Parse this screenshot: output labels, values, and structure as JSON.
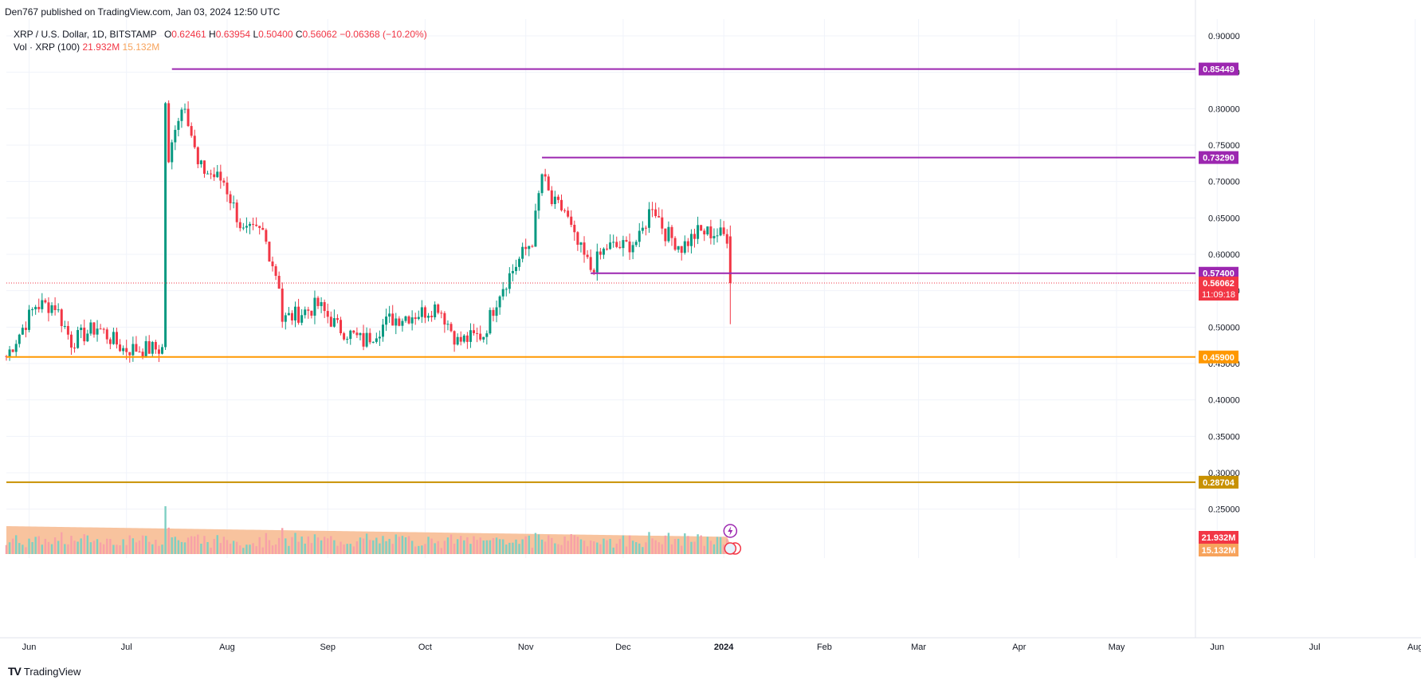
{
  "header": {
    "published": "Den767 published on TradingView.com, Jan 03, 2024 12:50 UTC"
  },
  "legend": {
    "symbol": "XRP / U.S. Dollar, 1D, BITSTAMP",
    "o_label": "O",
    "o_value": "0.62461",
    "h_label": "H",
    "h_value": "0.63954",
    "l_label": "L",
    "l_value": "0.50400",
    "c_label": "C",
    "c_value": "0.56062",
    "change": "−0.06368 (−10.20%)",
    "vol_label": "Vol · XRP (100)",
    "vol_value": "21.932M",
    "vol_ma": "15.132M"
  },
  "brand": {
    "name": "TradingView",
    "logo": "TV"
  },
  "colors": {
    "up": "#089981",
    "down": "#f23645",
    "purple": "#9c27b0",
    "orange": "#ff9800",
    "olive": "#c89100",
    "volArea": "#f7b98d"
  },
  "chart_data": {
    "type": "candlestick",
    "y_ticks": [
      0.9,
      0.85,
      0.8,
      0.75,
      0.7,
      0.65,
      0.6,
      0.55,
      0.5,
      0.45,
      0.4,
      0.35,
      0.3,
      0.25
    ],
    "y_tick_labels": [
      "0.90000",
      "0.85000",
      "0.80000",
      "0.75000",
      "0.70000",
      "0.65000",
      "0.60000",
      "0.55000",
      "0.50000",
      "0.45000",
      "0.40000",
      "0.35000",
      "0.30000",
      "0.25000"
    ],
    "ylim": [
      0.227,
      0.93
    ],
    "x_labels": [
      "Jun",
      "Jul",
      "Aug",
      "Sep",
      "Oct",
      "Nov",
      "Dec",
      "2024",
      "Feb",
      "Mar",
      "Apr",
      "May",
      "Jun",
      "Jul",
      "Aug"
    ],
    "x_label_dates": [
      "2023-06-01",
      "2023-07-01",
      "2023-08-01",
      "2023-09-01",
      "2023-10-01",
      "2023-11-01",
      "2023-12-01",
      "2024-01-01",
      "2024-02-01",
      "2024-03-01",
      "2024-04-01",
      "2024-05-01",
      "2024-06-01",
      "2024-07-01",
      "2024-08-01"
    ],
    "key_points": [
      {
        "date": "2023-05-25",
        "close": 0.46
      },
      {
        "date": "2023-06-03",
        "close": 0.53
      },
      {
        "date": "2023-06-09",
        "close": 0.53
      },
      {
        "date": "2023-06-14",
        "close": 0.48
      },
      {
        "date": "2023-06-22",
        "close": 0.5
      },
      {
        "date": "2023-06-30",
        "close": 0.47
      },
      {
        "date": "2023-07-12",
        "close": 0.47
      },
      {
        "date": "2023-07-13",
        "close": 0.81
      },
      {
        "date": "2023-07-14",
        "close": 0.72
      },
      {
        "date": "2023-07-16",
        "close": 0.78
      },
      {
        "date": "2023-07-19",
        "close": 0.81
      },
      {
        "date": "2023-07-23",
        "close": 0.72
      },
      {
        "date": "2023-07-31",
        "close": 0.7
      },
      {
        "date": "2023-08-06",
        "close": 0.63
      },
      {
        "date": "2023-08-12",
        "close": 0.63
      },
      {
        "date": "2023-08-17",
        "close": 0.56
      },
      {
        "date": "2023-08-18",
        "close": 0.51
      },
      {
        "date": "2023-08-24",
        "close": 0.52
      },
      {
        "date": "2023-08-29",
        "close": 0.53
      },
      {
        "date": "2023-09-04",
        "close": 0.5
      },
      {
        "date": "2023-09-12",
        "close": 0.48
      },
      {
        "date": "2023-09-20",
        "close": 0.51
      },
      {
        "date": "2023-09-30",
        "close": 0.52
      },
      {
        "date": "2023-10-05",
        "close": 0.53
      },
      {
        "date": "2023-10-11",
        "close": 0.48
      },
      {
        "date": "2023-10-19",
        "close": 0.49
      },
      {
        "date": "2023-10-24",
        "close": 0.55
      },
      {
        "date": "2023-10-31",
        "close": 0.6
      },
      {
        "date": "2023-11-03",
        "close": 0.62
      },
      {
        "date": "2023-11-06",
        "close": 0.71
      },
      {
        "date": "2023-11-09",
        "close": 0.67
      },
      {
        "date": "2023-11-13",
        "close": 0.66
      },
      {
        "date": "2023-11-16",
        "close": 0.62
      },
      {
        "date": "2023-11-21",
        "close": 0.58
      },
      {
        "date": "2023-11-26",
        "close": 0.61
      },
      {
        "date": "2023-12-01",
        "close": 0.61
      },
      {
        "date": "2023-12-06",
        "close": 0.62
      },
      {
        "date": "2023-12-10",
        "close": 0.67
      },
      {
        "date": "2023-12-14",
        "close": 0.63
      },
      {
        "date": "2023-12-19",
        "close": 0.61
      },
      {
        "date": "2023-12-24",
        "close": 0.63
      },
      {
        "date": "2023-12-28",
        "close": 0.63
      },
      {
        "date": "2024-01-02",
        "close": 0.625
      },
      {
        "date": "2024-01-03",
        "close": 0.56062
      }
    ],
    "last_candle": {
      "date": "2024-01-03",
      "open": 0.62461,
      "high": 0.63954,
      "low": 0.504,
      "close": 0.56062
    },
    "annotations": [
      0.7329,
      0.574,
      0.574,
      0.574
    ],
    "horizontal_lines": [
      {
        "value": 0.85449,
        "label": "0.85449",
        "color": "#9c27b0",
        "start": "2023-07-15"
      },
      {
        "value": 0.7329,
        "label": "0.73290",
        "color": "#9c27b0",
        "start": "2023-11-06"
      },
      {
        "value": 0.574,
        "label": "0.57400",
        "color": "#9c27b0",
        "start": "2023-11-21"
      },
      {
        "value": 0.459,
        "label": "0.45900",
        "color": "#ff9800",
        "start": "2023-05-25"
      },
      {
        "value": 0.28704,
        "label": "0.28704",
        "color": "#c89100",
        "start": "2023-05-25"
      }
    ],
    "last_price": {
      "value": 0.56062,
      "label": "0.56062",
      "countdown": "11:09:18"
    },
    "volume_labels": [
      "21.932M",
      "15.132M"
    ]
  }
}
